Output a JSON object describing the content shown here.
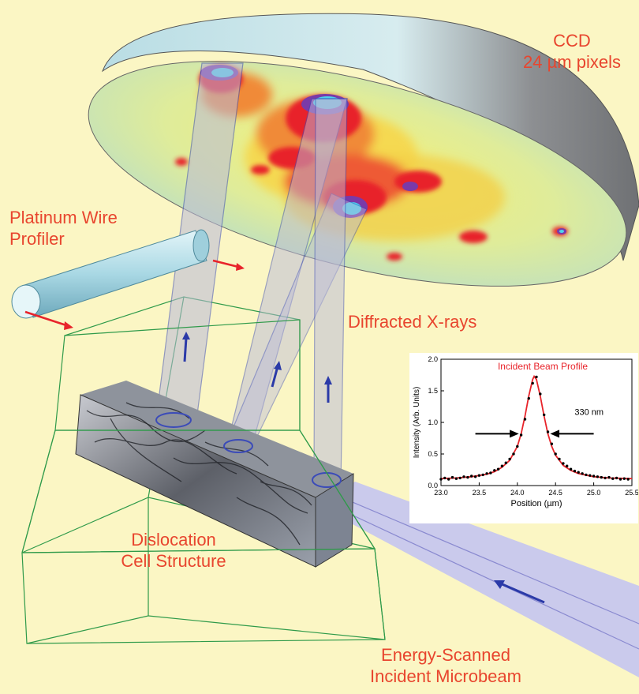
{
  "labels": {
    "ccd_line1": "CCD",
    "ccd_line2": "24 µm pixels",
    "wire_line1": "Platinum Wire",
    "wire_line2": "Profiler",
    "diffracted": "Diffracted X-rays",
    "cell_line1": "Dislocation",
    "cell_line2": "Cell Structure",
    "beam_line1": "Energy-Scanned",
    "beam_line2": "Incident Microbeam"
  },
  "colors": {
    "background": "#fbf6c4",
    "label_red": "#e8452e",
    "beam_blue": "#c7c7ee",
    "arrow_blue": "#2b3aa8",
    "wire_cyan": "#bfe3ec",
    "box_green": "#2f9a4a"
  },
  "chart_data": {
    "type": "scatter",
    "title": "Incident Beam Profile",
    "xlabel": "Position (µm)",
    "ylabel": "Intensity (Arb. Units)",
    "xlim": [
      23.0,
      25.5
    ],
    "ylim": [
      0.0,
      2.0
    ],
    "xticks": [
      "23.0",
      "23.5",
      "24.0",
      "24.5",
      "25.0",
      "25.5"
    ],
    "yticks": [
      "0.0",
      "0.5",
      "1.0",
      "1.5",
      "2.0"
    ],
    "annotation": "330 nm",
    "fit_color": "#e8242b",
    "fit_x": [
      23.0,
      23.2,
      23.4,
      23.6,
      23.7,
      23.8,
      23.9,
      24.0,
      24.05,
      24.1,
      24.15,
      24.2,
      24.22,
      24.25,
      24.3,
      24.35,
      24.4,
      24.45,
      24.5,
      24.6,
      24.7,
      24.8,
      25.0,
      25.2,
      25.5
    ],
    "fit_y": [
      0.11,
      0.12,
      0.14,
      0.18,
      0.22,
      0.29,
      0.4,
      0.62,
      0.82,
      1.1,
      1.42,
      1.68,
      1.73,
      1.68,
      1.42,
      1.1,
      0.82,
      0.62,
      0.48,
      0.32,
      0.24,
      0.19,
      0.14,
      0.12,
      0.11
    ],
    "points": [
      [
        23.0,
        0.1
      ],
      [
        23.05,
        0.12
      ],
      [
        23.1,
        0.1
      ],
      [
        23.15,
        0.13
      ],
      [
        23.2,
        0.11
      ],
      [
        23.25,
        0.12
      ],
      [
        23.3,
        0.14
      ],
      [
        23.35,
        0.13
      ],
      [
        23.4,
        0.15
      ],
      [
        23.45,
        0.14
      ],
      [
        23.5,
        0.16
      ],
      [
        23.55,
        0.17
      ],
      [
        23.6,
        0.19
      ],
      [
        23.65,
        0.2
      ],
      [
        23.7,
        0.24
      ],
      [
        23.75,
        0.26
      ],
      [
        23.8,
        0.31
      ],
      [
        23.85,
        0.36
      ],
      [
        23.9,
        0.42
      ],
      [
        23.95,
        0.5
      ],
      [
        24.0,
        0.62
      ],
      [
        24.05,
        0.8
      ],
      [
        24.1,
        1.05
      ],
      [
        24.15,
        1.38
      ],
      [
        24.2,
        1.62
      ],
      [
        24.25,
        1.72
      ],
      [
        24.3,
        1.45
      ],
      [
        24.35,
        1.12
      ],
      [
        24.4,
        0.85
      ],
      [
        24.45,
        0.66
      ],
      [
        24.5,
        0.5
      ],
      [
        24.55,
        0.42
      ],
      [
        24.6,
        0.35
      ],
      [
        24.65,
        0.31
      ],
      [
        24.7,
        0.26
      ],
      [
        24.75,
        0.23
      ],
      [
        24.8,
        0.21
      ],
      [
        24.85,
        0.19
      ],
      [
        24.9,
        0.17
      ],
      [
        24.95,
        0.16
      ],
      [
        25.0,
        0.15
      ],
      [
        25.05,
        0.14
      ],
      [
        25.1,
        0.13
      ],
      [
        25.15,
        0.12
      ],
      [
        25.2,
        0.13
      ],
      [
        25.25,
        0.11
      ],
      [
        25.3,
        0.12
      ],
      [
        25.35,
        0.1
      ],
      [
        25.4,
        0.11
      ],
      [
        25.45,
        0.1
      ]
    ]
  }
}
